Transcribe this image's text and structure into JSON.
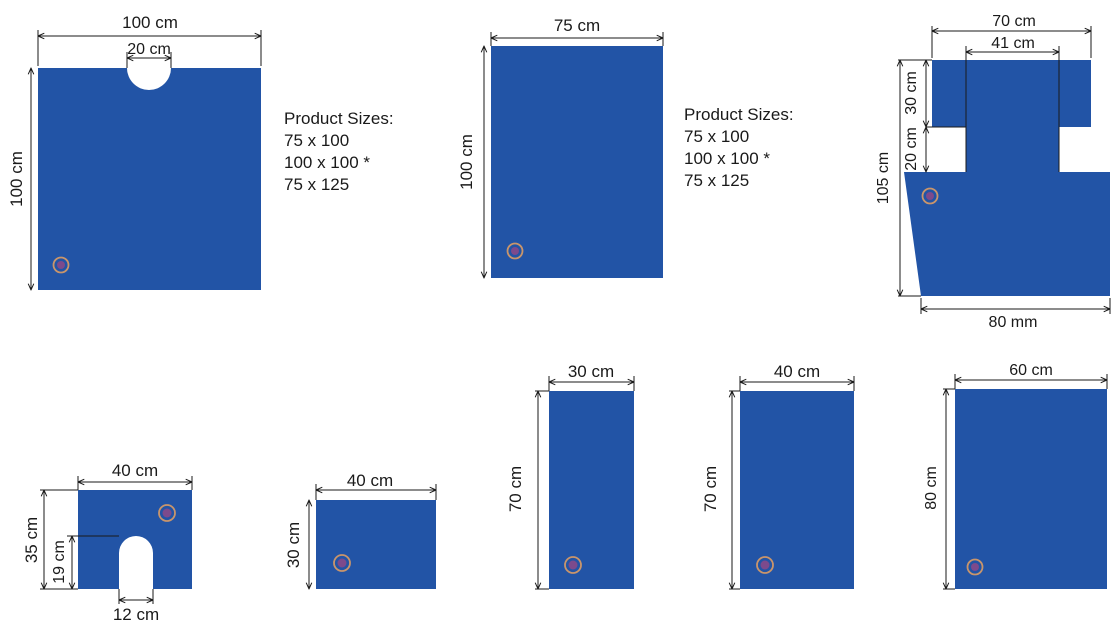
{
  "colors": {
    "fill": "#2254A6",
    "dim_line": "#1a1a1a",
    "marker_ring": "#C9956B",
    "marker_dot": "#7C4A8C"
  },
  "notes_1": {
    "title": "Product Sizes:",
    "sizes": [
      "75 x 100",
      "100 x 100 *",
      "75 x 125"
    ]
  },
  "notes_2": {
    "title": "Product Sizes:",
    "sizes": [
      "75 x 100",
      "100 x 100 *",
      "75 x 125"
    ]
  },
  "sheet_1": {
    "width": "100 cm",
    "height": "100 cm",
    "cutout_width": "20 cm"
  },
  "sheet_2": {
    "width": "75 cm",
    "height": "100 cm"
  },
  "sheet_3": {
    "top_width": "70 cm",
    "inner_width": "41 cm",
    "height": "105 cm",
    "upper_height": "30 cm",
    "mid_height": "20 cm",
    "bottom_width": "80 mm"
  },
  "sheet_4": {
    "width": "40 cm",
    "height": "35 cm",
    "slot_height": "19 cm",
    "slot_width": "12 cm"
  },
  "sheet_5": {
    "width": "40 cm",
    "height": "30 cm"
  },
  "sheet_6": {
    "width": "30 cm",
    "height": "70 cm"
  },
  "sheet_7": {
    "width": "40 cm",
    "height": "70 cm"
  },
  "sheet_8": {
    "width": "60 cm",
    "height": "80 cm"
  }
}
